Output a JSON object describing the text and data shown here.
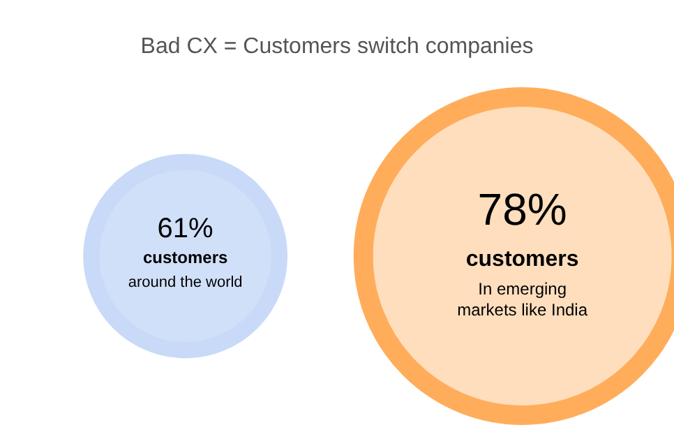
{
  "chart_data": {
    "type": "other",
    "title": "Bad CX = Customers switch companies",
    "categories": [
      "around the world",
      "In emerging markets like India"
    ],
    "series": [
      {
        "name": "customers",
        "values": [
          61,
          78
        ],
        "value_labels": [
          "61%",
          "78%"
        ]
      }
    ],
    "colors": [
      "#c9daf8",
      "#ffad5b"
    ],
    "legend": false
  }
}
